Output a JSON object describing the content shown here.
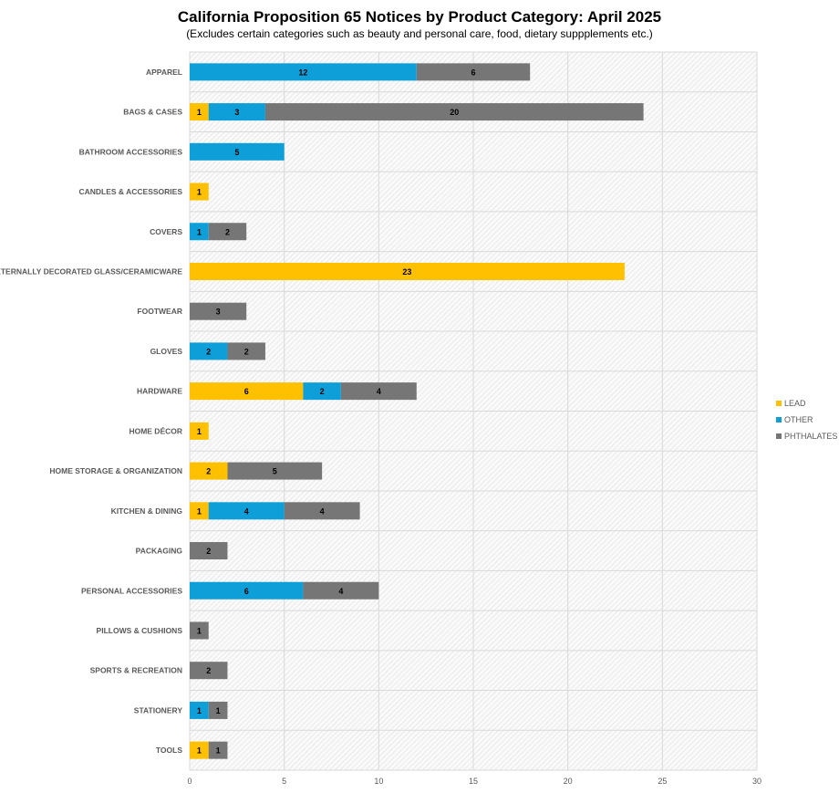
{
  "chart_data": {
    "type": "bar",
    "orientation": "horizontal",
    "stacked": true,
    "title": "California Proposition 65 Notices by Product Category: April 2025",
    "subtitle": "(Excludes certain categories such as beauty and personal care, food, dietary suppplements etc.)",
    "xlabel": "",
    "ylabel": "",
    "xlim": [
      0,
      30
    ],
    "xticks": [
      0,
      5,
      10,
      15,
      20,
      25,
      30
    ],
    "grid": true,
    "legend_position": "right",
    "categories": [
      "APPAREL",
      "BAGS & CASES",
      "BATHROOM ACCESSORIES",
      "CANDLES & ACCESSORIES",
      "COVERS",
      "EXTERNALLY DECORATED GLASS/CERAMICWARE",
      "FOOTWEAR",
      "GLOVES",
      "HARDWARE",
      "HOME DÉCOR",
      "HOME STORAGE & ORGANIZATION",
      "KITCHEN & DINING",
      "PACKAGING",
      "PERSONAL ACCESSORIES",
      "PILLOWS & CUSHIONS",
      "SPORTS & RECREATION",
      "STATIONERY",
      "TOOLS"
    ],
    "series": [
      {
        "name": "LEAD",
        "color": "#FFC000",
        "values": [
          0,
          1,
          0,
          1,
          0,
          23,
          0,
          0,
          6,
          1,
          2,
          1,
          0,
          0,
          0,
          0,
          0,
          1
        ]
      },
      {
        "name": "OTHER",
        "color": "#0E9FD8",
        "values": [
          12,
          3,
          5,
          0,
          1,
          0,
          0,
          2,
          2,
          0,
          0,
          4,
          0,
          6,
          0,
          0,
          1,
          0
        ]
      },
      {
        "name": "PHTHALATES",
        "color": "#767676",
        "values": [
          6,
          20,
          0,
          0,
          2,
          0,
          3,
          2,
          4,
          0,
          5,
          4,
          2,
          4,
          1,
          2,
          1,
          1
        ]
      }
    ]
  }
}
